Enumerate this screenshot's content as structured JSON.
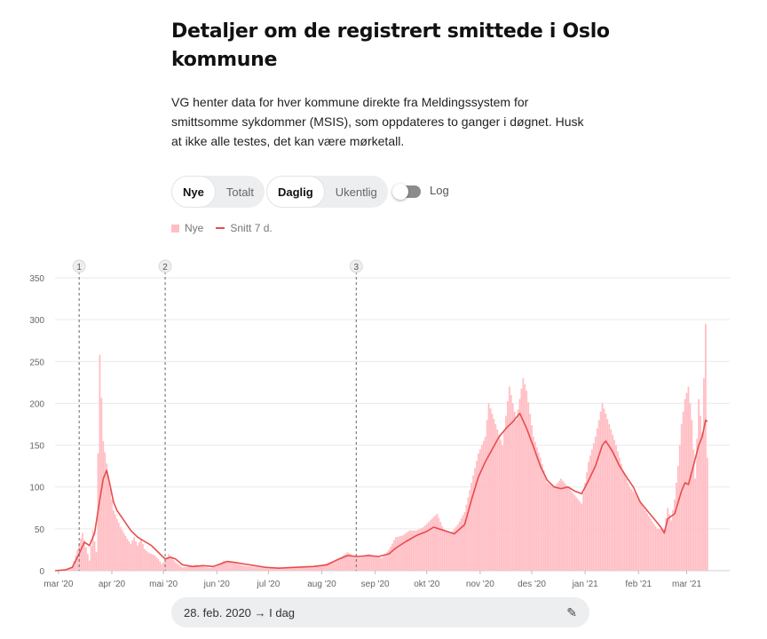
{
  "header": {
    "title": "Detaljer om de registrert smittede i Oslo kommune",
    "description": "VG henter data for hver kommune direkte fra Meldingssystem for smittsomme sykdommer (MSIS), som oppdateres to ganger i døgnet. Husk at ikke alle testes, det kan være mørketall."
  },
  "controls": {
    "group1": [
      {
        "label": "Nye",
        "active": true
      },
      {
        "label": "Totalt",
        "active": false
      }
    ],
    "group2": [
      {
        "label": "Daglig",
        "active": true
      },
      {
        "label": "Ukentlig",
        "active": false
      }
    ],
    "log_label": "Log",
    "log_enabled": false
  },
  "legend": {
    "bars_label": "Nye",
    "line_label": "Snitt 7 d."
  },
  "colors": {
    "bar": "#ffbec4",
    "line": "#e84c4c",
    "grid": "#e9e9e9",
    "marker": "#666666"
  },
  "date_range": {
    "label": "28. feb. 2020 → I dag",
    "edit_icon": "pencil-icon"
  },
  "chart_data": {
    "type": "bar",
    "y_ticks": [
      0,
      50,
      100,
      150,
      200,
      250,
      300,
      350
    ],
    "ylim": [
      0,
      350
    ],
    "x_range_days": [
      0,
      392
    ],
    "x_ticks": [
      {
        "label": "mar '20",
        "day": 2
      },
      {
        "label": "apr '20",
        "day": 33
      },
      {
        "label": "mai '20",
        "day": 63
      },
      {
        "label": "jun '20",
        "day": 94
      },
      {
        "label": "jul '20",
        "day": 124
      },
      {
        "label": "aug '20",
        "day": 155
      },
      {
        "label": "sep '20",
        "day": 186
      },
      {
        "label": "okt '20",
        "day": 216
      },
      {
        "label": "nov '20",
        "day": 247
      },
      {
        "label": "des '20",
        "day": 277
      },
      {
        "label": "jan '21",
        "day": 308
      },
      {
        "label": "feb '21",
        "day": 339
      },
      {
        "label": "mar '21",
        "day": 367
      }
    ],
    "markers": [
      {
        "label": "1",
        "day": 14
      },
      {
        "label": "2",
        "day": 64
      },
      {
        "label": "3",
        "day": 175
      }
    ],
    "series": [
      {
        "name": "Nye",
        "kind": "bar",
        "points": [
          [
            0,
            0
          ],
          [
            6,
            1
          ],
          [
            10,
            5
          ],
          [
            12,
            18
          ],
          [
            14,
            32
          ],
          [
            16,
            45
          ],
          [
            18,
            28
          ],
          [
            20,
            12
          ],
          [
            22,
            48
          ],
          [
            24,
            22
          ],
          [
            26,
            258
          ],
          [
            28,
            155
          ],
          [
            30,
            128
          ],
          [
            32,
            98
          ],
          [
            34,
            72
          ],
          [
            36,
            62
          ],
          [
            38,
            52
          ],
          [
            40,
            45
          ],
          [
            42,
            38
          ],
          [
            44,
            32
          ],
          [
            46,
            40
          ],
          [
            48,
            30
          ],
          [
            50,
            38
          ],
          [
            52,
            26
          ],
          [
            54,
            22
          ],
          [
            56,
            20
          ],
          [
            58,
            18
          ],
          [
            60,
            14
          ],
          [
            62,
            8
          ],
          [
            64,
            12
          ],
          [
            66,
            20
          ],
          [
            68,
            15
          ],
          [
            70,
            10
          ],
          [
            74,
            4
          ],
          [
            78,
            5
          ],
          [
            82,
            7
          ],
          [
            86,
            5
          ],
          [
            90,
            3
          ],
          [
            94,
            5
          ],
          [
            98,
            12
          ],
          [
            102,
            10
          ],
          [
            106,
            8
          ],
          [
            110,
            6
          ],
          [
            114,
            5
          ],
          [
            118,
            4
          ],
          [
            122,
            3
          ],
          [
            126,
            3
          ],
          [
            130,
            4
          ],
          [
            134,
            3
          ],
          [
            138,
            3
          ],
          [
            142,
            5
          ],
          [
            146,
            4
          ],
          [
            150,
            5
          ],
          [
            154,
            6
          ],
          [
            158,
            9
          ],
          [
            162,
            12
          ],
          [
            166,
            16
          ],
          [
            170,
            22
          ],
          [
            174,
            17
          ],
          [
            178,
            16
          ],
          [
            182,
            20
          ],
          [
            186,
            18
          ],
          [
            190,
            15
          ],
          [
            194,
            25
          ],
          [
            198,
            40
          ],
          [
            202,
            42
          ],
          [
            206,
            48
          ],
          [
            210,
            48
          ],
          [
            214,
            52
          ],
          [
            218,
            60
          ],
          [
            222,
            68
          ],
          [
            226,
            48
          ],
          [
            230,
            45
          ],
          [
            234,
            55
          ],
          [
            238,
            70
          ],
          [
            242,
            105
          ],
          [
            246,
            140
          ],
          [
            250,
            160
          ],
          [
            252,
            200
          ],
          [
            256,
            175
          ],
          [
            260,
            150
          ],
          [
            264,
            220
          ],
          [
            268,
            180
          ],
          [
            272,
            230
          ],
          [
            274,
            215
          ],
          [
            278,
            160
          ],
          [
            282,
            135
          ],
          [
            286,
            105
          ],
          [
            290,
            100
          ],
          [
            294,
            110
          ],
          [
            298,
            100
          ],
          [
            302,
            90
          ],
          [
            306,
            80
          ],
          [
            310,
            130
          ],
          [
            314,
            160
          ],
          [
            318,
            200
          ],
          [
            322,
            175
          ],
          [
            326,
            150
          ],
          [
            330,
            120
          ],
          [
            334,
            100
          ],
          [
            338,
            90
          ],
          [
            342,
            75
          ],
          [
            346,
            62
          ],
          [
            350,
            50
          ],
          [
            354,
            50
          ],
          [
            356,
            75
          ],
          [
            358,
            60
          ],
          [
            360,
            85
          ],
          [
            362,
            125
          ],
          [
            364,
            175
          ],
          [
            366,
            205
          ],
          [
            368,
            220
          ],
          [
            370,
            180
          ],
          [
            372,
            110
          ],
          [
            374,
            205
          ],
          [
            376,
            165
          ],
          [
            378,
            295
          ],
          [
            379,
            135
          ]
        ]
      },
      {
        "name": "Snitt 7 d.",
        "kind": "line",
        "points": [
          [
            0,
            0
          ],
          [
            6,
            1
          ],
          [
            10,
            4
          ],
          [
            14,
            20
          ],
          [
            17,
            34
          ],
          [
            20,
            30
          ],
          [
            23,
            45
          ],
          [
            26,
            85
          ],
          [
            28,
            110
          ],
          [
            30,
            120
          ],
          [
            32,
            102
          ],
          [
            34,
            82
          ],
          [
            36,
            72
          ],
          [
            40,
            60
          ],
          [
            44,
            48
          ],
          [
            48,
            40
          ],
          [
            52,
            35
          ],
          [
            56,
            30
          ],
          [
            60,
            22
          ],
          [
            64,
            14
          ],
          [
            67,
            16
          ],
          [
            70,
            14
          ],
          [
            74,
            7
          ],
          [
            80,
            5
          ],
          [
            86,
            6
          ],
          [
            92,
            5
          ],
          [
            96,
            8
          ],
          [
            100,
            11
          ],
          [
            104,
            10
          ],
          [
            110,
            8
          ],
          [
            116,
            6
          ],
          [
            122,
            4
          ],
          [
            130,
            3
          ],
          [
            140,
            4
          ],
          [
            150,
            5
          ],
          [
            158,
            7
          ],
          [
            164,
            13
          ],
          [
            170,
            18
          ],
          [
            176,
            17
          ],
          [
            182,
            18
          ],
          [
            188,
            17
          ],
          [
            194,
            20
          ],
          [
            198,
            27
          ],
          [
            204,
            35
          ],
          [
            210,
            42
          ],
          [
            216,
            47
          ],
          [
            220,
            52
          ],
          [
            226,
            48
          ],
          [
            232,
            44
          ],
          [
            238,
            55
          ],
          [
            242,
            85
          ],
          [
            246,
            112
          ],
          [
            250,
            130
          ],
          [
            254,
            145
          ],
          [
            258,
            160
          ],
          [
            262,
            170
          ],
          [
            266,
            178
          ],
          [
            270,
            188
          ],
          [
            274,
            170
          ],
          [
            278,
            148
          ],
          [
            282,
            125
          ],
          [
            286,
            108
          ],
          [
            290,
            100
          ],
          [
            294,
            98
          ],
          [
            298,
            100
          ],
          [
            302,
            95
          ],
          [
            306,
            92
          ],
          [
            310,
            108
          ],
          [
            314,
            125
          ],
          [
            318,
            150
          ],
          [
            320,
            155
          ],
          [
            324,
            142
          ],
          [
            328,
            125
          ],
          [
            332,
            112
          ],
          [
            336,
            100
          ],
          [
            340,
            82
          ],
          [
            344,
            72
          ],
          [
            348,
            62
          ],
          [
            352,
            52
          ],
          [
            354,
            45
          ],
          [
            356,
            62
          ],
          [
            360,
            68
          ],
          [
            364,
            95
          ],
          [
            366,
            105
          ],
          [
            368,
            103
          ],
          [
            371,
            126
          ],
          [
            374,
            150
          ],
          [
            376,
            160
          ],
          [
            378,
            180
          ],
          [
            379,
            178
          ]
        ]
      }
    ]
  }
}
